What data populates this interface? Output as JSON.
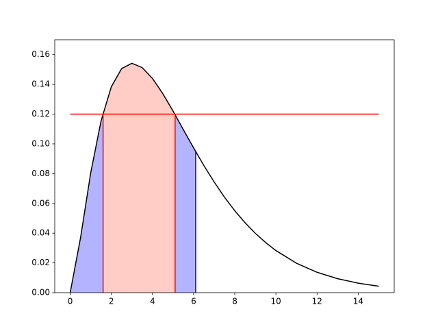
{
  "chart_data": {
    "type": "line",
    "x": [
      0,
      0.5,
      1,
      1.5,
      2,
      2.5,
      3,
      3.5,
      4,
      4.5,
      5,
      5.5,
      6,
      6.5,
      7,
      7.5,
      8,
      8.5,
      9,
      9.5,
      10,
      11,
      12,
      13,
      14,
      15
    ],
    "series": [
      {
        "color": "#000000",
        "values": [
          0,
          0.0366,
          0.0807,
          0.1154,
          0.1384,
          0.1506,
          0.1542,
          0.1513,
          0.144,
          0.1338,
          0.1221,
          0.1096,
          0.0973,
          0.0854,
          0.0744,
          0.0642,
          0.0551,
          0.047,
          0.0399,
          0.0337,
          0.0283,
          0.0198,
          0.0137,
          0.0094,
          0.0064,
          0.0043
        ]
      }
    ],
    "regions": [
      {
        "from": 0,
        "to": 6.1,
        "color": "#b3b3ff"
      },
      {
        "from": 1.6,
        "to": 5.1,
        "color": "#ffccc6"
      }
    ],
    "vlines": [
      {
        "x": 1.6,
        "ymax": 0.12,
        "color": "#ff0000"
      },
      {
        "x": 5.1,
        "ymax": 0.12,
        "color": "#ff0000"
      },
      {
        "x": 6.1,
        "ymax": 0.0949,
        "color": "#0000ff"
      }
    ],
    "hlines": [
      {
        "y": 0.12,
        "xmin": 0,
        "xmax": 15,
        "color": "#ff0000"
      }
    ],
    "xlim": [
      -0.75,
      15.75
    ],
    "ylim": [
      0,
      0.17
    ],
    "xticks": [
      0,
      2,
      4,
      6,
      8,
      10,
      12,
      14
    ],
    "yticks": [
      {
        "value": 0,
        "label": "0.00"
      },
      {
        "value": 0.02,
        "label": "0.02"
      },
      {
        "value": 0.04,
        "label": "0.04"
      },
      {
        "value": 0.06,
        "label": "0.06"
      },
      {
        "value": 0.08,
        "label": "0.08"
      },
      {
        "value": 0.1,
        "label": "0.10"
      },
      {
        "value": 0.12,
        "label": "0.12"
      },
      {
        "value": 0.14,
        "label": "0.14"
      },
      {
        "value": 0.16,
        "label": "0.16"
      }
    ]
  }
}
